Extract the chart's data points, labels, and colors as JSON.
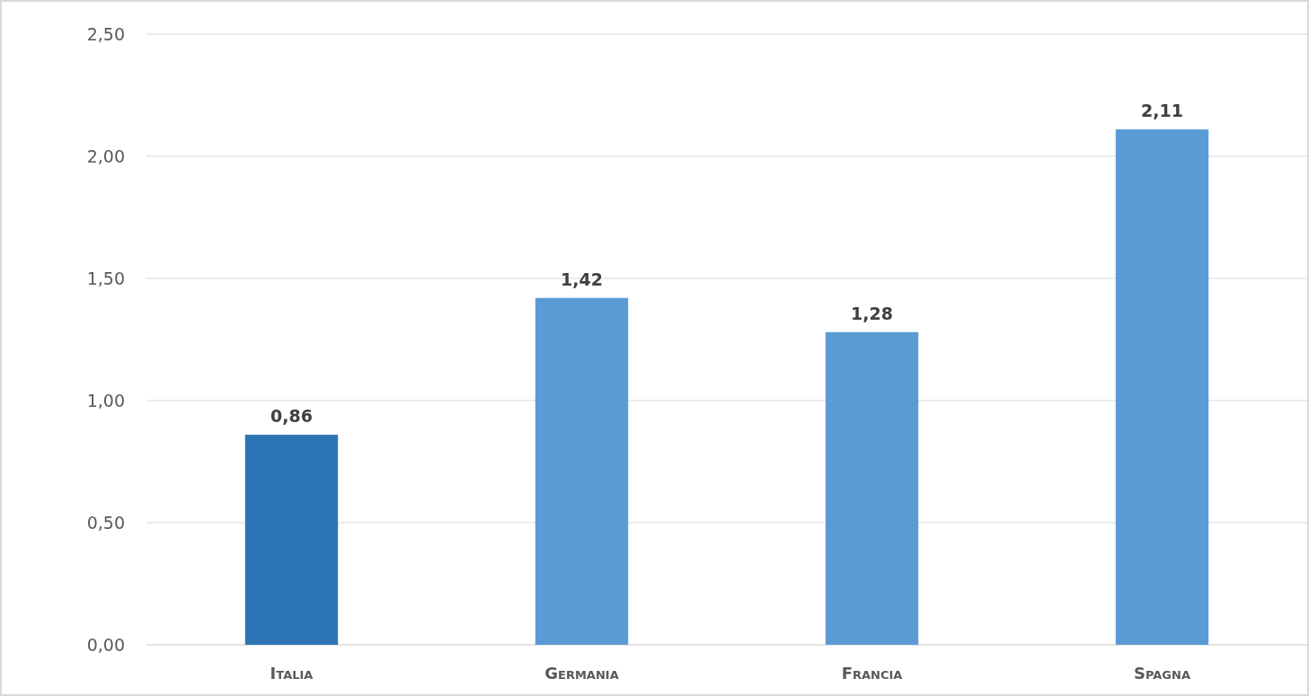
{
  "chart_data": {
    "type": "bar",
    "categories": [
      "Italia",
      "Germania",
      "Francia",
      "Spagna"
    ],
    "values": [
      0.86,
      1.42,
      1.28,
      2.11
    ],
    "colors": [
      "#2e75b6",
      "#5b9bd5",
      "#5b9bd5",
      "#5b9bd5"
    ],
    "value_labels": [
      "0,86",
      "1,42",
      "1,28",
      "2,11"
    ],
    "ylim": [
      0,
      2.5
    ],
    "yticks": [
      {
        "value": 0,
        "label": "0,00"
      },
      {
        "value": 0.5,
        "label": "0,50"
      },
      {
        "value": 1,
        "label": "1,00"
      },
      {
        "value": 1.5,
        "label": "1,50"
      },
      {
        "value": 2,
        "label": "2,00"
      },
      {
        "value": 2.5,
        "label": "2,50"
      }
    ],
    "grid": "y"
  }
}
